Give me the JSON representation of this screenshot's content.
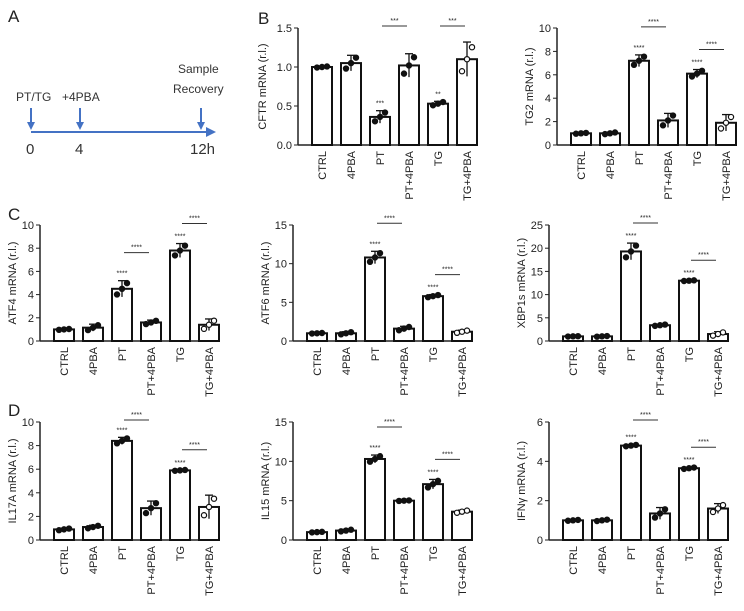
{
  "panel_labels": [
    "A",
    "B",
    "C",
    "D"
  ],
  "timeline": {
    "events": [
      "PT/TG",
      "+4PBA",
      "Sample",
      "Recovery"
    ],
    "ticks": [
      "0",
      "4",
      "12h"
    ],
    "color": "#4472c4"
  },
  "chart_data": [
    {
      "type": "bar",
      "panel": "B",
      "ylabel": "CFTR mRNA (r.l.)",
      "ylim": [
        0,
        1.5
      ],
      "yticks": [
        "0.0",
        "0.5",
        "1.0",
        "1.5"
      ],
      "tickvals": [
        0,
        0.5,
        1.0,
        1.5
      ],
      "categories": [
        "CTRL",
        "4PBA",
        "PT",
        "PT+4PBA",
        "TG",
        "TG+4PBA"
      ],
      "values": [
        1.0,
        1.05,
        0.36,
        1.02,
        0.53,
        1.1
      ],
      "sd": [
        0.01,
        0.1,
        0.08,
        0.15,
        0.03,
        0.22
      ],
      "bar_stars": [
        "",
        "",
        "***",
        "",
        "**",
        ""
      ],
      "comparisons": [
        {
          "from": "PT",
          "to": "PT+4PBA",
          "label": "***"
        },
        {
          "from": "TG",
          "to": "TG+4PBA",
          "label": "***"
        }
      ]
    },
    {
      "type": "bar",
      "panel": "B",
      "ylabel": "TG2 mRNA (r.l.)",
      "ylim": [
        0,
        10
      ],
      "yticks": [
        "0",
        "2",
        "4",
        "6",
        "8",
        "10"
      ],
      "tickvals": [
        0,
        2,
        4,
        6,
        8,
        10
      ],
      "categories": [
        "CTRL",
        "4PBA",
        "PT",
        "PT+4PBA",
        "TG",
        "TG+4PBA"
      ],
      "values": [
        1.0,
        1.0,
        7.2,
        2.1,
        6.1,
        1.9
      ],
      "sd": [
        0.05,
        0.1,
        0.5,
        0.6,
        0.35,
        0.7
      ],
      "bar_stars": [
        "",
        "",
        "****",
        "",
        "****",
        ""
      ],
      "comparisons": [
        {
          "from": "PT",
          "to": "PT+4PBA",
          "label": "****"
        },
        {
          "from": "TG",
          "to": "TG+4PBA",
          "label": "****"
        }
      ]
    },
    {
      "type": "bar",
      "panel": "C",
      "ylabel": "ATF4 mRNA (r.l.)",
      "ylim": [
        0,
        10
      ],
      "yticks": [
        "0",
        "2",
        "4",
        "6",
        "8",
        "10"
      ],
      "tickvals": [
        0,
        2,
        4,
        6,
        8,
        10
      ],
      "categories": [
        "CTRL",
        "4PBA",
        "PT",
        "PT+4PBA",
        "TG",
        "TG+4PBA"
      ],
      "values": [
        1.0,
        1.15,
        4.5,
        1.6,
        7.8,
        1.4
      ],
      "sd": [
        0.05,
        0.3,
        0.7,
        0.2,
        0.6,
        0.5
      ],
      "bar_stars": [
        "",
        "",
        "****",
        "",
        "****",
        ""
      ],
      "comparisons": [
        {
          "from": "PT",
          "to": "PT+4PBA",
          "label": "****"
        },
        {
          "from": "TG",
          "to": "TG+4PBA",
          "label": "****"
        }
      ]
    },
    {
      "type": "bar",
      "panel": "C",
      "ylabel": "ATF6 mRNA (r.l.)",
      "ylim": [
        0,
        15
      ],
      "yticks": [
        "0",
        "5",
        "10",
        "15"
      ],
      "tickvals": [
        0,
        5,
        10,
        15
      ],
      "categories": [
        "CTRL",
        "4PBA",
        "PT",
        "PT+4PBA",
        "TG",
        "TG+4PBA"
      ],
      "values": [
        1.0,
        1.0,
        10.8,
        1.6,
        5.8,
        1.2
      ],
      "sd": [
        0.05,
        0.2,
        0.8,
        0.3,
        0.2,
        0.2
      ],
      "bar_stars": [
        "",
        "",
        "****",
        "",
        "****",
        ""
      ],
      "comparisons": [
        {
          "from": "PT",
          "to": "PT+4PBA",
          "label": "****"
        },
        {
          "from": "TG",
          "to": "TG+4PBA",
          "label": "****"
        }
      ]
    },
    {
      "type": "bar",
      "panel": "C",
      "ylabel": "XBP1s mRNA (r.l.)",
      "ylim": [
        0,
        25
      ],
      "yticks": [
        "0",
        "5",
        "10",
        "15",
        "20",
        "25"
      ],
      "tickvals": [
        0,
        5,
        10,
        15,
        20,
        25
      ],
      "categories": [
        "CTRL",
        "4PBA",
        "PT",
        "PT+4PBA",
        "TG",
        "TG+4PBA"
      ],
      "values": [
        1.0,
        1.0,
        19.3,
        3.4,
        13.0,
        1.5
      ],
      "sd": [
        0.05,
        0.1,
        1.8,
        0.2,
        0.1,
        0.5
      ],
      "bar_stars": [
        "",
        "",
        "****",
        "",
        "****",
        ""
      ],
      "comparisons": [
        {
          "from": "PT",
          "to": "PT+4PBA",
          "label": "****"
        },
        {
          "from": "TG",
          "to": "TG+4PBA",
          "label": "****"
        }
      ]
    },
    {
      "type": "bar",
      "panel": "D",
      "ylabel": "IL17A mRNA (r.l.)",
      "ylim": [
        0,
        10
      ],
      "yticks": [
        "0",
        "2",
        "4",
        "6",
        "8",
        "10"
      ],
      "tickvals": [
        0,
        2,
        4,
        6,
        8,
        10
      ],
      "categories": [
        "CTRL",
        "4PBA",
        "PT",
        "PT+4PBA",
        "TG",
        "TG+4PBA"
      ],
      "values": [
        0.9,
        1.1,
        8.4,
        2.7,
        5.9,
        2.8
      ],
      "sd": [
        0.1,
        0.15,
        0.3,
        0.6,
        0.05,
        1.0
      ],
      "bar_stars": [
        "",
        "",
        "****",
        "",
        "****",
        ""
      ],
      "comparisons": [
        {
          "from": "PT",
          "to": "PT+4PBA",
          "label": "****"
        },
        {
          "from": "TG",
          "to": "TG+4PBA",
          "label": "****"
        }
      ]
    },
    {
      "type": "bar",
      "panel": "D",
      "ylabel": "IL15 mRNA (r.l.)",
      "ylim": [
        0,
        15
      ],
      "yticks": [
        "0",
        "5",
        "10",
        "15"
      ],
      "tickvals": [
        0,
        5,
        10,
        15
      ],
      "categories": [
        "CTRL",
        "4PBA",
        "PT",
        "PT+4PBA",
        "TG",
        "TG+4PBA"
      ],
      "values": [
        1.0,
        1.2,
        10.3,
        5.0,
        7.1,
        3.6
      ],
      "sd": [
        0.05,
        0.15,
        0.5,
        0.05,
        0.6,
        0.2
      ],
      "bar_stars": [
        "",
        "",
        "****",
        "",
        "****",
        ""
      ],
      "comparisons": [
        {
          "from": "PT",
          "to": "PT+4PBA",
          "label": "****"
        },
        {
          "from": "TG",
          "to": "TG+4PBA",
          "label": "****"
        }
      ]
    },
    {
      "type": "bar",
      "panel": "D",
      "ylabel": "IFNγ mRNA (r.l.)",
      "ylim": [
        0,
        6
      ],
      "yticks": [
        "0",
        "2",
        "4",
        "6"
      ],
      "tickvals": [
        0,
        2,
        4,
        6
      ],
      "categories": [
        "CTRL",
        "4PBA",
        "PT",
        "PT+4PBA",
        "TG",
        "TG+4PBA"
      ],
      "values": [
        1.0,
        1.0,
        4.8,
        1.35,
        3.65,
        1.6
      ],
      "sd": [
        0.03,
        0.05,
        0.05,
        0.3,
        0.05,
        0.25
      ],
      "bar_stars": [
        "",
        "",
        "****",
        "",
        "****",
        ""
      ],
      "comparisons": [
        {
          "from": "PT",
          "to": "PT+4PBA",
          "label": "****"
        },
        {
          "from": "TG",
          "to": "TG+4PBA",
          "label": "****"
        }
      ]
    }
  ]
}
